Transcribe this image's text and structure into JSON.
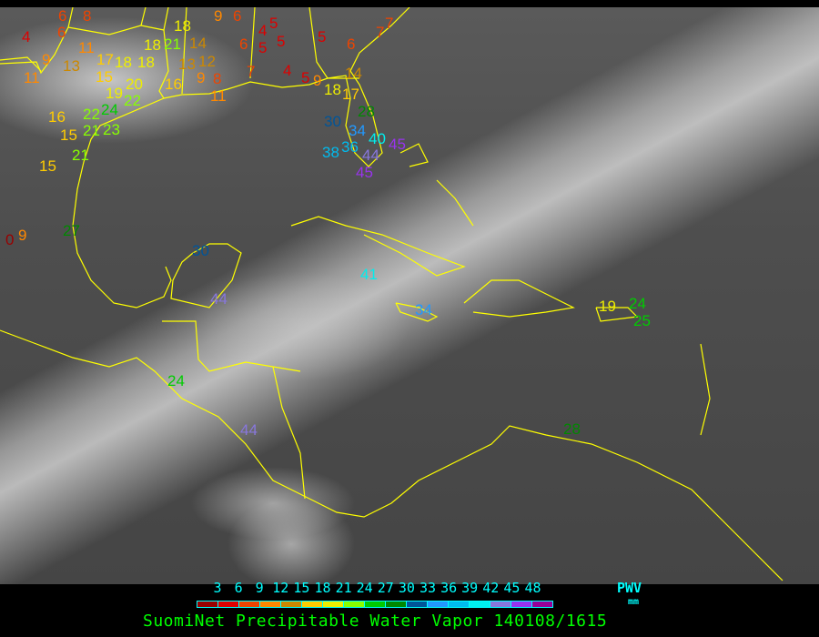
{
  "title": "SuomiNet Precipitable Water Vapor 140108/1615",
  "legend": {
    "label": "PWV",
    "unit": "mm",
    "ticks": [
      "3",
      "6",
      "9",
      "12",
      "15",
      "18",
      "21",
      "24",
      "27",
      "30",
      "33",
      "36",
      "39",
      "42",
      "45",
      "48"
    ],
    "colors": [
      "#990000",
      "#dd0000",
      "#ee4400",
      "#ff8800",
      "#cc8800",
      "#ffcc00",
      "#eeee00",
      "#88ff00",
      "#00cc00",
      "#008800",
      "#005599",
      "#2299ff",
      "#00bbee",
      "#00eeee",
      "#8877dd",
      "#9933ee",
      "#990099"
    ]
  },
  "boundary_color": "#ffff00",
  "stations": [
    "6",
    "8",
    "4",
    "6",
    "11",
    "9",
    "13",
    "11",
    "17",
    "18",
    "15",
    "19",
    "20",
    "18",
    "18",
    "21",
    "18",
    "16",
    "13",
    "14",
    "12",
    "9",
    "8",
    "11",
    "16",
    "22",
    "24",
    "22",
    "15",
    "21",
    "23",
    "21",
    "15",
    "0",
    "9",
    "27",
    "30",
    "44",
    "24",
    "44",
    "41",
    "34",
    "19",
    "24",
    "25",
    "28",
    "9",
    "6",
    "4",
    "5",
    "6",
    "5",
    "5",
    "5",
    "6",
    "7",
    "4",
    "5",
    "9",
    "14",
    "18",
    "17",
    "7",
    "7",
    "28",
    "30",
    "34",
    "40",
    "36",
    "38",
    "44",
    "45",
    "45"
  ]
}
